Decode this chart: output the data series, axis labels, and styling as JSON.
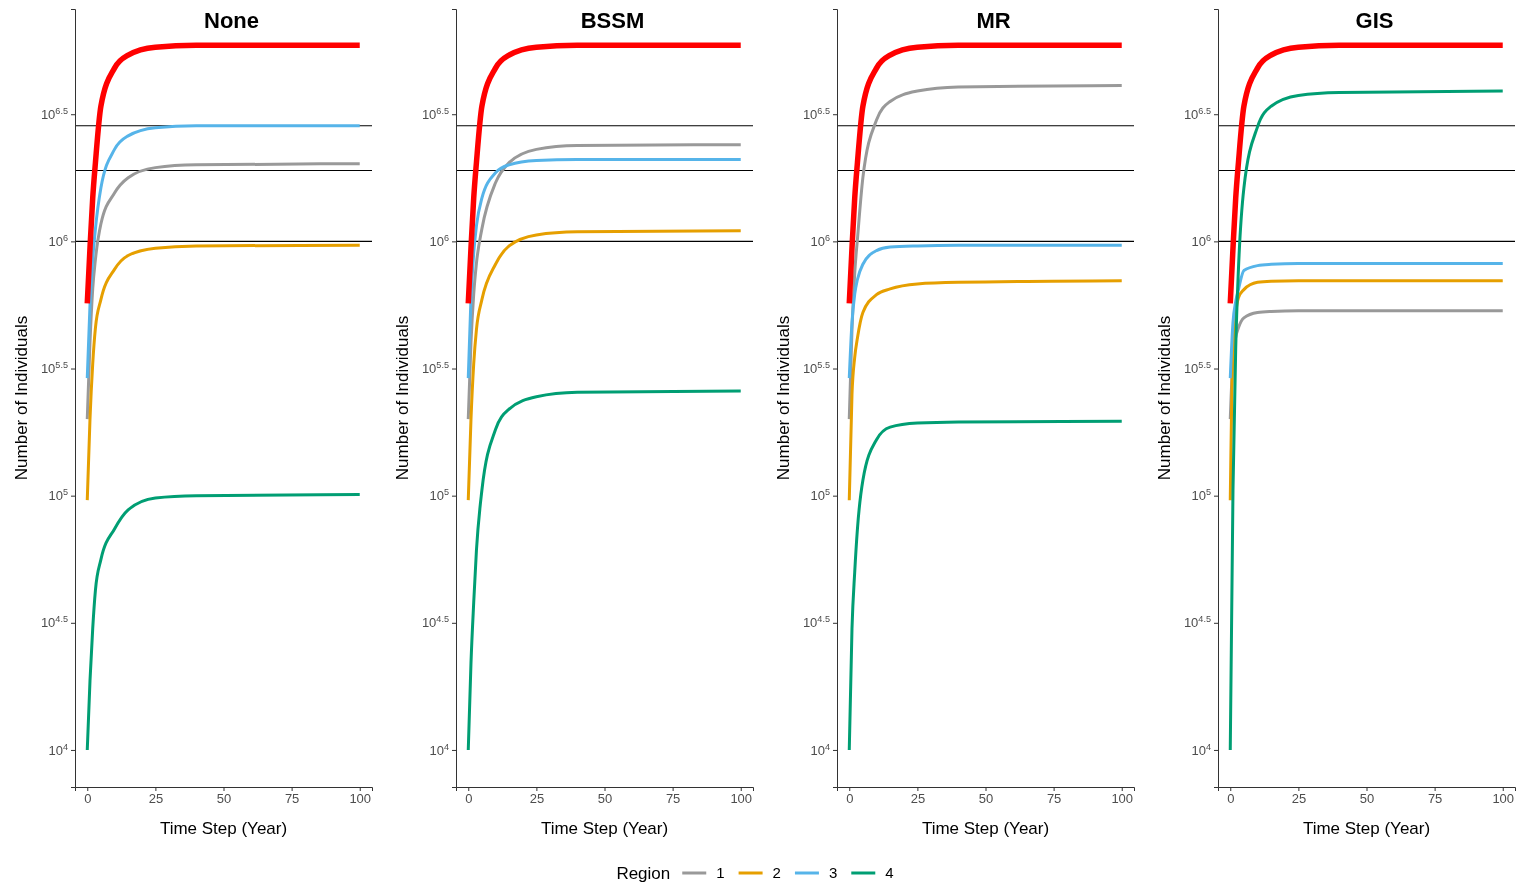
{
  "chart_data": [
    {
      "type": "line",
      "title": "None",
      "xlabel": "Time Step (Year)",
      "ylabel": "Number of Individuals",
      "log": "y",
      "grid": false,
      "legend": "bottom",
      "legend_title": "Region",
      "line_style": "solid",
      "marker": "none",
      "xlim": [
        -4.5,
        104.5
      ],
      "xticks": [
        0,
        25,
        50,
        75,
        100
      ],
      "ylim": [
        7150,
        8200000
      ],
      "yticks": [
        {
          "value": 10000,
          "label": "10$^{4}$"
        },
        {
          "value": 31622.8,
          "label": "10$^{4.5}$"
        },
        {
          "value": 100000,
          "label": "10$^{5}$"
        },
        {
          "value": 316228,
          "label": "10$^{5.5}$"
        },
        {
          "value": 1000000,
          "label": "10$^{6}$"
        },
        {
          "value": 3162278,
          "label": "10$^{6.5}$"
        }
      ],
      "x": [
        0,
        1,
        2,
        3,
        5,
        10,
        15,
        25,
        40,
        100
      ],
      "ref_lines": [
        {
          "axis": "y",
          "value": 2850000,
          "color": "#000000"
        },
        {
          "axis": "y",
          "value": 1900000,
          "color": "#000000"
        },
        {
          "axis": "y",
          "value": 1000000,
          "color": "#000000"
        }
      ],
      "series": [
        {
          "name": "1",
          "color": "#999999",
          "values": [
            200000,
            400000,
            650000,
            850000,
            1170000,
            1550000,
            1780000,
            1950000,
            2000000,
            2020000
          ]
        },
        {
          "name": "2",
          "color": "#e69f00",
          "values": [
            96000,
            200000,
            330000,
            457000,
            590000,
            776000,
            880000,
            940000,
            960000,
            965000
          ]
        },
        {
          "name": "3",
          "color": "#56b4e9",
          "values": [
            290000,
            560000,
            850000,
            1120000,
            1620000,
            2300000,
            2600000,
            2800000,
            2850000,
            2850000
          ]
        },
        {
          "name": "4",
          "color": "#009e73",
          "values": [
            10000,
            18700,
            30000,
            42500,
            56000,
            74000,
            88000,
            98000,
            100000,
            101000
          ]
        },
        {
          "color": "#ff0000",
          "values": [
            570000,
            940000,
            1480000,
            2040000,
            3400000,
            4800000,
            5400000,
            5800000,
            5900000,
            5900000
          ]
        }
      ]
    },
    {
      "type": "line",
      "title": "BSSM",
      "xlabel": "Time Step (Year)",
      "ylabel": "Number of Individuals",
      "log": "y",
      "grid": false,
      "line_style": "solid",
      "marker": "none",
      "xlim": [
        -4.5,
        104.5
      ],
      "xticks": [
        0,
        25,
        50,
        75,
        100
      ],
      "ylim": [
        7150,
        8200000
      ],
      "yticks": [
        {
          "value": 10000,
          "label": "10$^{4}$"
        },
        {
          "value": 31622.8,
          "label": "10$^{4.5}$"
        },
        {
          "value": 100000,
          "label": "10$^{5}$"
        },
        {
          "value": 316228,
          "label": "10$^{5.5}$"
        },
        {
          "value": 1000000,
          "label": "10$^{6}$"
        },
        {
          "value": 3162278,
          "label": "10$^{6.5}$"
        }
      ],
      "x": [
        0,
        1,
        2,
        3,
        5,
        10,
        15,
        25,
        40,
        100
      ],
      "ref_lines": [
        {
          "axis": "y",
          "value": 2850000,
          "color": "#000000"
        },
        {
          "axis": "y",
          "value": 1900000,
          "color": "#000000"
        },
        {
          "axis": "y",
          "value": 1000000,
          "color": "#000000"
        }
      ],
      "series": [
        {
          "name": "1",
          "color": "#999999",
          "values": [
            200000,
            400000,
            620000,
            820000,
            1120000,
            1700000,
            2040000,
            2300000,
            2380000,
            2400000
          ]
        },
        {
          "name": "2",
          "color": "#e69f00",
          "values": [
            96000,
            200000,
            330000,
            450000,
            590000,
            813000,
            960000,
            1060000,
            1090000,
            1100000
          ]
        },
        {
          "name": "3",
          "color": "#56b4e9",
          "values": [
            290000,
            600000,
            900000,
            1150000,
            1480000,
            1860000,
            2000000,
            2080000,
            2100000,
            2100000
          ]
        },
        {
          "name": "4",
          "color": "#009e73",
          "values": [
            10000,
            22000,
            38000,
            61000,
            105000,
            182000,
            219000,
            245000,
            255000,
            258000
          ]
        },
        {
          "color": "#ff0000",
          "values": [
            570000,
            940000,
            1480000,
            2040000,
            3400000,
            4800000,
            5400000,
            5800000,
            5900000,
            5900000
          ]
        }
      ]
    },
    {
      "type": "line",
      "title": "MR",
      "xlabel": "Time Step (Year)",
      "ylabel": "Number of Individuals",
      "log": "y",
      "grid": false,
      "line_style": "solid",
      "marker": "none",
      "xlim": [
        -4.5,
        104.5
      ],
      "xticks": [
        0,
        25,
        50,
        75,
        100
      ],
      "ylim": [
        7150,
        8200000
      ],
      "yticks": [
        {
          "value": 10000,
          "label": "10$^{4}$"
        },
        {
          "value": 31622.8,
          "label": "10$^{4.5}$"
        },
        {
          "value": 100000,
          "label": "10$^{5}$"
        },
        {
          "value": 316228,
          "label": "10$^{5.5}$"
        },
        {
          "value": 1000000,
          "label": "10$^{6}$"
        },
        {
          "value": 3162278,
          "label": "10$^{6.5}$"
        }
      ],
      "x": [
        0,
        1,
        2,
        3,
        5,
        10,
        15,
        25,
        40,
        100
      ],
      "ref_lines": [
        {
          "axis": "y",
          "value": 2850000,
          "color": "#000000"
        },
        {
          "axis": "y",
          "value": 1900000,
          "color": "#000000"
        },
        {
          "axis": "y",
          "value": 1000000,
          "color": "#000000"
        }
      ],
      "series": [
        {
          "name": "1",
          "color": "#999999",
          "values": [
            200000,
            450000,
            750000,
            1020000,
            1780000,
            3000000,
            3550000,
            3900000,
            4050000,
            4100000
          ]
        },
        {
          "name": "2",
          "color": "#e69f00",
          "values": [
            96000,
            250000,
            350000,
            417000,
            525000,
            617000,
            650000,
            680000,
            690000,
            700000
          ]
        },
        {
          "name": "3",
          "color": "#56b4e9",
          "values": [
            290000,
            480000,
            620000,
            708000,
            813000,
            920000,
            950000,
            960000,
            965000,
            965000
          ]
        },
        {
          "name": "4",
          "color": "#009e73",
          "values": [
            10000,
            30000,
            50000,
            74000,
            115000,
            166000,
            186000,
            193000,
            195000,
            196000
          ]
        },
        {
          "color": "#ff0000",
          "values": [
            570000,
            940000,
            1480000,
            2040000,
            3400000,
            4800000,
            5400000,
            5800000,
            5900000,
            5900000
          ]
        }
      ]
    },
    {
      "type": "line",
      "title": "GIS",
      "xlabel": "Time Step (Year)",
      "ylabel": "Number of Individuals",
      "log": "y",
      "grid": false,
      "line_style": "solid",
      "marker": "none",
      "xlim": [
        -4.5,
        104.5
      ],
      "xticks": [
        0,
        25,
        50,
        75,
        100
      ],
      "ylim": [
        7150,
        8200000
      ],
      "yticks": [
        {
          "value": 10000,
          "label": "10$^{4}$"
        },
        {
          "value": 31622.8,
          "label": "10$^{4.5}$"
        },
        {
          "value": 100000,
          "label": "10$^{5}$"
        },
        {
          "value": 316228,
          "label": "10$^{5.5}$"
        },
        {
          "value": 1000000,
          "label": "10$^{6}$"
        },
        {
          "value": 3162278,
          "label": "10$^{6.5}$"
        }
      ],
      "x": [
        0,
        1,
        2,
        3,
        5,
        10,
        15,
        25,
        40,
        100
      ],
      "ref_lines": [
        {
          "axis": "y",
          "value": 2850000,
          "color": "#000000"
        },
        {
          "axis": "y",
          "value": 1900000,
          "color": "#000000"
        },
        {
          "axis": "y",
          "value": 1000000,
          "color": "#000000"
        }
      ],
      "series": [
        {
          "name": "1",
          "color": "#999999",
          "values": [
            200000,
            350000,
            420000,
            457000,
            500000,
            525000,
            530000,
            533000,
            533000,
            533000
          ]
        },
        {
          "name": "2",
          "color": "#e69f00",
          "values": [
            96000,
            380000,
            null,
            600000,
            646000,
            690000,
            697000,
            700000,
            700000,
            700000
          ]
        },
        {
          "name": "3",
          "color": "#56b4e9",
          "values": [
            290000,
            480000,
            580000,
            646000,
            768000,
            803000,
            812000,
            818000,
            818000,
            818000
          ]
        },
        {
          "name": "4",
          "color": "#009e73",
          "values": [
            10000,
            105000,
            380000,
            776000,
            1620000,
            2820000,
            3400000,
            3750000,
            3850000,
            3900000
          ]
        },
        {
          "color": "#ff0000",
          "values": [
            570000,
            940000,
            1480000,
            2040000,
            3400000,
            4800000,
            5400000,
            5800000,
            5900000,
            5900000
          ]
        }
      ]
    }
  ]
}
